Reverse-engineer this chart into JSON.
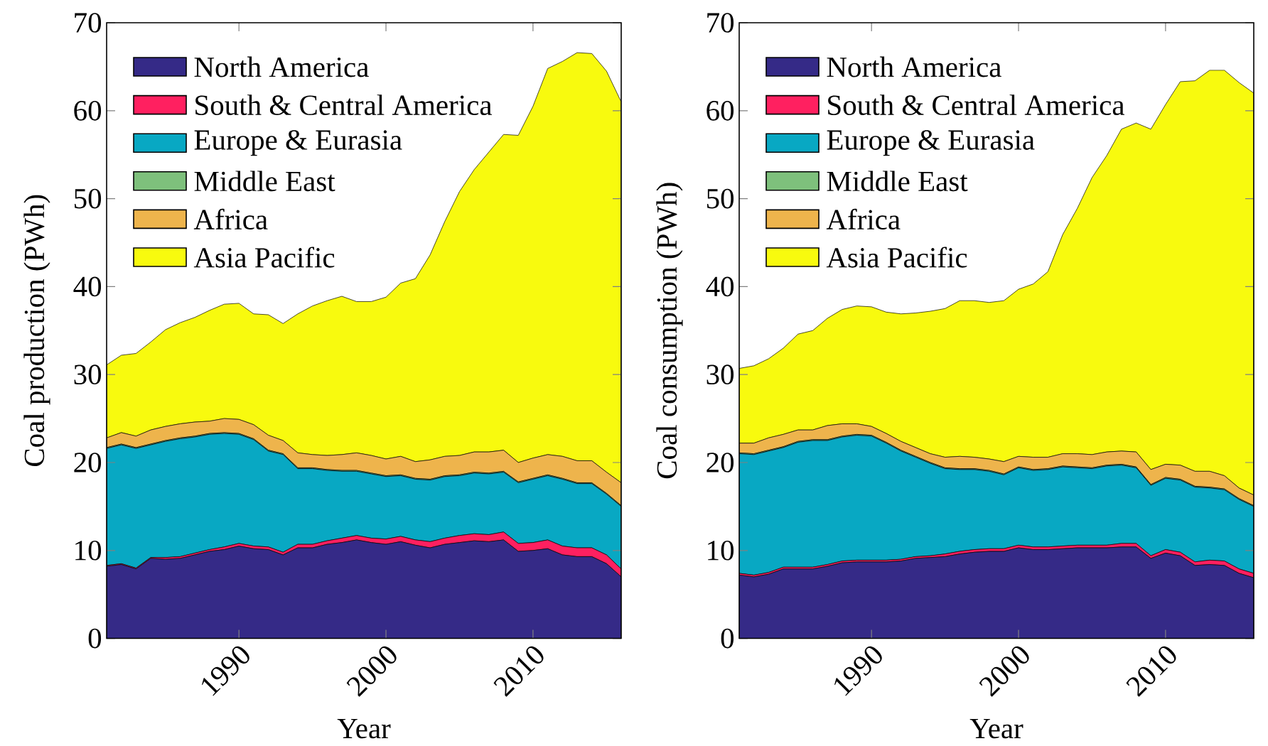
{
  "chart_data": [
    {
      "type": "area",
      "stacked": true,
      "xlabel": "Year",
      "ylabel": "Coal production (PWh)",
      "xlim": [
        1981,
        2016
      ],
      "ylim": [
        0,
        70
      ],
      "xticks": [
        1990,
        2000,
        2010
      ],
      "yticks": [
        0,
        10,
        20,
        30,
        40,
        50,
        60,
        70
      ],
      "legend": "top left",
      "x": [
        1981,
        1982,
        1983,
        1984,
        1985,
        1986,
        1987,
        1988,
        1989,
        1990,
        1991,
        1992,
        1993,
        1994,
        1995,
        1996,
        1997,
        1998,
        1999,
        2000,
        2001,
        2002,
        2003,
        2004,
        2005,
        2006,
        2007,
        2008,
        2009,
        2010,
        2011,
        2012,
        2013,
        2014,
        2015,
        2016
      ],
      "series": [
        {
          "name": "North America",
          "color": "#352a87",
          "values": [
            8.2,
            8.4,
            7.9,
            9.1,
            9.0,
            9.1,
            9.5,
            9.9,
            10.1,
            10.5,
            10.2,
            10.1,
            9.5,
            10.3,
            10.3,
            10.7,
            10.9,
            11.2,
            10.9,
            10.7,
            11.0,
            10.6,
            10.3,
            10.7,
            10.9,
            11.1,
            11.0,
            11.2,
            9.9,
            10.0,
            10.2,
            9.5,
            9.3,
            9.3,
            8.5,
            7.0
          ]
        },
        {
          "name": "South & Central America",
          "color": "#ff2060",
          "values": [
            0.1,
            0.1,
            0.1,
            0.1,
            0.2,
            0.2,
            0.2,
            0.2,
            0.3,
            0.3,
            0.3,
            0.3,
            0.3,
            0.4,
            0.4,
            0.4,
            0.5,
            0.5,
            0.5,
            0.6,
            0.6,
            0.6,
            0.7,
            0.7,
            0.8,
            0.8,
            0.8,
            0.9,
            0.9,
            0.9,
            1.0,
            1.0,
            1.0,
            1.0,
            1.0,
            0.9
          ]
        },
        {
          "name": "Europe & Eurasia",
          "color": "#08a8c3",
          "values": [
            13.3,
            13.5,
            13.6,
            12.8,
            13.2,
            13.4,
            13.2,
            13.1,
            12.9,
            12.4,
            12.1,
            10.9,
            11.1,
            8.6,
            8.6,
            8.0,
            7.6,
            7.3,
            7.3,
            7.1,
            6.9,
            6.9,
            7.0,
            7.0,
            6.8,
            6.9,
            6.9,
            6.8,
            6.9,
            7.2,
            7.3,
            7.6,
            7.3,
            7.3,
            6.9,
            7.1
          ]
        },
        {
          "name": "Middle East",
          "color": "#7ec07c",
          "values": [
            0.1,
            0.1,
            0.1,
            0.1,
            0.1,
            0.1,
            0.1,
            0.1,
            0.1,
            0.1,
            0.1,
            0.1,
            0.1,
            0.1,
            0.1,
            0.1,
            0.1,
            0.1,
            0.1,
            0.1,
            0.1,
            0.1,
            0.1,
            0.1,
            0.1,
            0.1,
            0.1,
            0.1,
            0.1,
            0.1,
            0.1,
            0.1,
            0.1,
            0.1,
            0.1,
            0.1
          ]
        },
        {
          "name": "Africa",
          "color": "#eeb44c",
          "values": [
            1.1,
            1.3,
            1.3,
            1.6,
            1.6,
            1.6,
            1.6,
            1.4,
            1.6,
            1.6,
            1.6,
            1.7,
            1.5,
            1.7,
            1.5,
            1.6,
            1.8,
            2.0,
            2.0,
            1.9,
            2.1,
            1.9,
            2.2,
            2.2,
            2.2,
            2.3,
            2.4,
            2.4,
            2.2,
            2.3,
            2.3,
            2.5,
            2.5,
            2.5,
            2.4,
            2.6
          ]
        },
        {
          "name": "Asia Pacific",
          "color": "#f8fa0e",
          "values": [
            8.3,
            8.8,
            9.4,
            10.0,
            11.0,
            11.5,
            11.9,
            12.6,
            13.0,
            13.2,
            12.6,
            13.7,
            13.3,
            15.8,
            16.9,
            17.6,
            18.0,
            17.2,
            17.5,
            18.4,
            19.7,
            20.8,
            23.3,
            26.7,
            30.0,
            32.1,
            34.1,
            35.9,
            37.2,
            40.0,
            43.9,
            44.9,
            46.4,
            46.3,
            45.6,
            43.3
          ]
        }
      ]
    },
    {
      "type": "area",
      "stacked": true,
      "xlabel": "Year",
      "ylabel": "Coal consumption (PWh)",
      "xlim": [
        1981,
        2016
      ],
      "ylim": [
        0,
        70
      ],
      "xticks": [
        1990,
        2000,
        2010
      ],
      "yticks": [
        0,
        10,
        20,
        30,
        40,
        50,
        60,
        70
      ],
      "legend": "top left",
      "x": [
        1981,
        1982,
        1983,
        1984,
        1985,
        1986,
        1987,
        1988,
        1989,
        1990,
        1991,
        1992,
        1993,
        1994,
        1995,
        1996,
        1997,
        1998,
        1999,
        2000,
        2001,
        2002,
        2003,
        2004,
        2005,
        2006,
        2007,
        2008,
        2009,
        2010,
        2011,
        2012,
        2013,
        2014,
        2015,
        2016
      ],
      "series": [
        {
          "name": "North America",
          "color": "#352a87",
          "values": [
            7.2,
            7.0,
            7.3,
            7.9,
            7.9,
            7.9,
            8.2,
            8.6,
            8.7,
            8.7,
            8.7,
            8.8,
            9.1,
            9.2,
            9.3,
            9.6,
            9.8,
            9.9,
            9.9,
            10.3,
            10.1,
            10.1,
            10.2,
            10.3,
            10.3,
            10.3,
            10.4,
            10.4,
            9.1,
            9.7,
            9.4,
            8.3,
            8.4,
            8.3,
            7.4,
            6.9
          ]
        },
        {
          "name": "South & Central America",
          "color": "#ff2060",
          "values": [
            0.2,
            0.2,
            0.2,
            0.2,
            0.2,
            0.2,
            0.2,
            0.2,
            0.2,
            0.2,
            0.2,
            0.2,
            0.2,
            0.2,
            0.3,
            0.3,
            0.3,
            0.3,
            0.3,
            0.3,
            0.3,
            0.3,
            0.3,
            0.3,
            0.3,
            0.3,
            0.4,
            0.4,
            0.3,
            0.4,
            0.4,
            0.4,
            0.5,
            0.5,
            0.5,
            0.5
          ]
        },
        {
          "name": "Europe & Eurasia",
          "color": "#08a8c3",
          "values": [
            13.6,
            13.7,
            13.8,
            13.6,
            14.2,
            14.4,
            14.1,
            14.1,
            14.2,
            14.1,
            13.3,
            12.3,
            11.3,
            10.5,
            9.7,
            9.3,
            9.1,
            8.8,
            8.4,
            8.8,
            8.7,
            8.8,
            9.0,
            8.8,
            8.7,
            9.0,
            8.9,
            8.6,
            8.0,
            8.1,
            8.2,
            8.5,
            8.2,
            8.1,
            7.9,
            7.6
          ]
        },
        {
          "name": "Middle East",
          "color": "#7ec07c",
          "values": [
            0.1,
            0.1,
            0.1,
            0.1,
            0.1,
            0.1,
            0.1,
            0.1,
            0.1,
            0.1,
            0.1,
            0.1,
            0.1,
            0.1,
            0.1,
            0.1,
            0.1,
            0.1,
            0.1,
            0.1,
            0.1,
            0.1,
            0.1,
            0.1,
            0.1,
            0.1,
            0.1,
            0.1,
            0.1,
            0.1,
            0.1,
            0.1,
            0.1,
            0.1,
            0.1,
            0.1
          ]
        },
        {
          "name": "Africa",
          "color": "#eeb44c",
          "values": [
            1.1,
            1.2,
            1.4,
            1.4,
            1.3,
            1.1,
            1.6,
            1.4,
            1.2,
            1.0,
            1.0,
            1.0,
            1.0,
            1.0,
            1.2,
            1.4,
            1.3,
            1.3,
            1.4,
            1.2,
            1.4,
            1.3,
            1.4,
            1.5,
            1.5,
            1.5,
            1.5,
            1.7,
            1.7,
            1.5,
            1.6,
            1.7,
            1.8,
            1.5,
            1.2,
            1.2
          ]
        },
        {
          "name": "Asia Pacific",
          "color": "#f8fa0e",
          "values": [
            8.5,
            8.8,
            9.0,
            9.8,
            10.9,
            11.3,
            12.2,
            13.0,
            13.4,
            13.6,
            13.8,
            14.5,
            15.3,
            16.2,
            16.9,
            17.7,
            17.8,
            17.8,
            18.3,
            19.0,
            19.7,
            21.1,
            24.9,
            27.9,
            31.5,
            33.7,
            36.6,
            37.4,
            38.7,
            40.9,
            43.6,
            44.4,
            45.6,
            46.1,
            46.1,
            45.7
          ]
        }
      ]
    }
  ]
}
